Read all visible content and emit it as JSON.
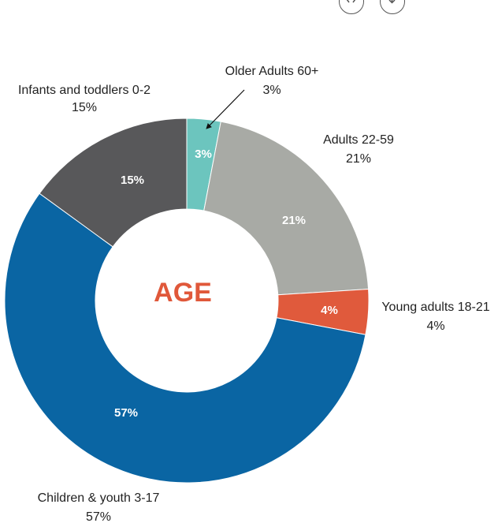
{
  "toolbar": {
    "buttons": [
      {
        "icon": "share-icon"
      },
      {
        "icon": "download-icon"
      }
    ]
  },
  "chart_data": {
    "type": "pie",
    "variant": "donut",
    "center_label": "AGE",
    "center_label_color": "#e0583a",
    "slices": [
      {
        "label": "Older Adults 60+",
        "value": 3,
        "inner_label": "3%",
        "outer_value_label": "3%",
        "color": "#6cc5be"
      },
      {
        "label": "Adults 22-59",
        "value": 21,
        "inner_label": "21%",
        "outer_value_label": "21%",
        "color": "#a8aaa5"
      },
      {
        "label": "Young adults 18-21",
        "value": 4,
        "inner_label": "4%",
        "outer_value_label": "4%",
        "color": "#e05a3c"
      },
      {
        "label": "Children & youth 3-17",
        "value": 57,
        "inner_label": "57%",
        "outer_value_label": "57%",
        "color": "#0a65a3"
      },
      {
        "label": "Infants and toddlers 0-2",
        "value": 15,
        "inner_label": "15%",
        "outer_value_label": "15%",
        "color": "#58585a"
      }
    ]
  }
}
